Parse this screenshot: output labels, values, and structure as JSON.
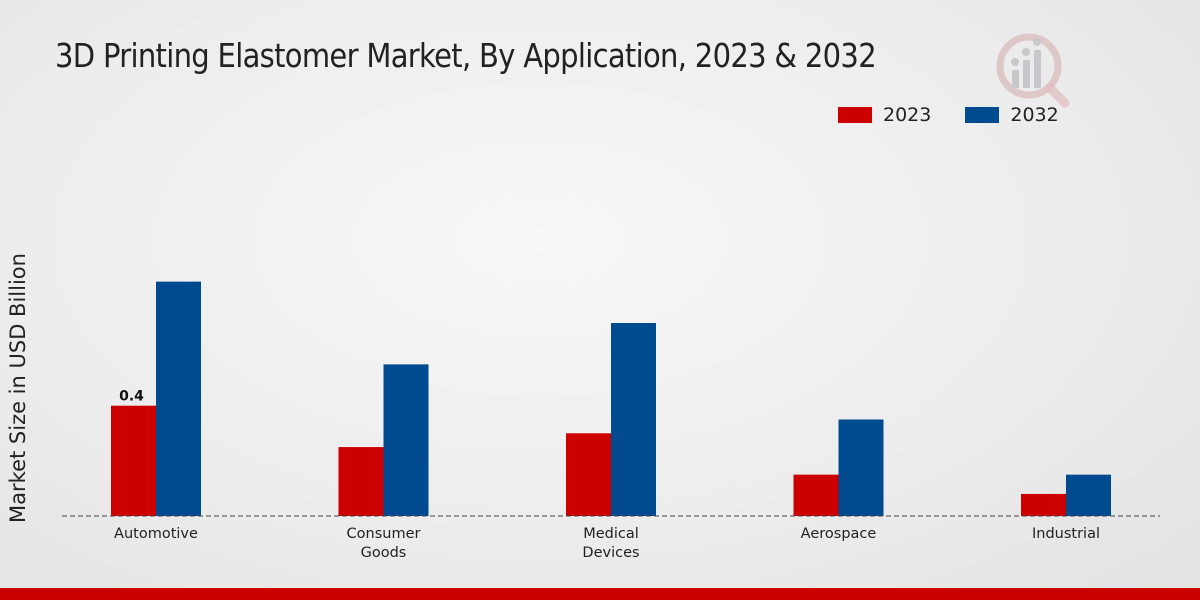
{
  "chart_data": {
    "type": "bar",
    "title": "3D Printing Elastomer Market, By Application, 2023 & 2032",
    "xlabel": "",
    "ylabel": "Market Size in USD Billion",
    "categories": [
      [
        "Automotive"
      ],
      [
        "Consumer",
        "Goods"
      ],
      [
        "Medical",
        "Devices"
      ],
      [
        "Aerospace"
      ],
      [
        "Industrial"
      ]
    ],
    "series": [
      {
        "name": "2023",
        "color": "#cc0000",
        "values": [
          0.4,
          0.25,
          0.3,
          0.15,
          0.08
        ]
      },
      {
        "name": "2032",
        "color": "#004a8f",
        "values": [
          0.85,
          0.55,
          0.7,
          0.35,
          0.15
        ]
      }
    ],
    "data_labels": [
      {
        "series": 0,
        "index": 0,
        "text": "0.4"
      }
    ],
    "ylim": [
      0,
      1.4
    ],
    "legend_position": "top-right",
    "grid": false
  },
  "bottom_bar_color": "#cc0000"
}
